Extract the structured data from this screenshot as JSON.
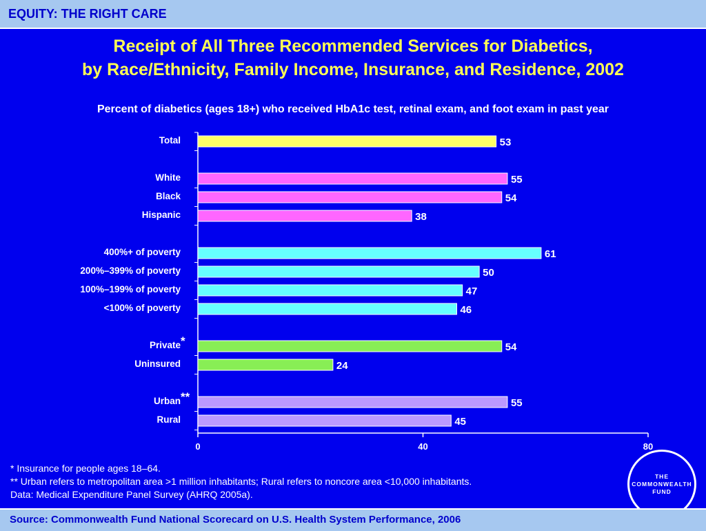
{
  "header": {
    "section": "EQUITY: THE RIGHT CARE"
  },
  "title": {
    "line1": "Receipt of All Three Recommended Services for Diabetics,",
    "line2": "by Race/Ethnicity, Family Income, Insurance, and Residence, 2002"
  },
  "subtitle": "Percent of diabetics (ages 18+) who received HbA1c test, retinal exam, and foot exam in past year",
  "chart_data": {
    "type": "bar",
    "orientation": "horizontal",
    "xlim": [
      0,
      80
    ],
    "xticks": [
      0,
      40,
      80
    ],
    "grid": false,
    "legend": "none",
    "groups": [
      {
        "color": "#ffff66",
        "items": [
          {
            "label": "Total",
            "value": 53,
            "marker": ""
          }
        ]
      },
      {
        "color": "#ff66ff",
        "items": [
          {
            "label": "White",
            "value": 55,
            "marker": ""
          },
          {
            "label": "Black",
            "value": 54,
            "marker": ""
          },
          {
            "label": "Hispanic",
            "value": 38,
            "marker": ""
          }
        ]
      },
      {
        "color": "#66ffff",
        "items": [
          {
            "label": "400%+ of poverty",
            "value": 61,
            "marker": ""
          },
          {
            "label": "200%–399% of poverty",
            "value": 50,
            "marker": ""
          },
          {
            "label": "100%–199% of poverty",
            "value": 47,
            "marker": ""
          },
          {
            "label": "<100% of poverty",
            "value": 46,
            "marker": ""
          }
        ]
      },
      {
        "color": "#88ee55",
        "items": [
          {
            "label": "Private",
            "value": 54,
            "marker": "*"
          },
          {
            "label": "Uninsured",
            "value": 24,
            "marker": ""
          }
        ]
      },
      {
        "color": "#bb99ff",
        "items": [
          {
            "label": "Urban",
            "value": 55,
            "marker": "**"
          },
          {
            "label": "Rural",
            "value": 45,
            "marker": ""
          }
        ]
      }
    ]
  },
  "footnotes": {
    "note1": "* Insurance for people ages 18–64.",
    "note2": "** Urban refers to metropolitan area >1 million inhabitants; Rural refers to noncore area <10,000 inhabitants.",
    "note3": "Data: Medical Expenditure Panel Survey (AHRQ 2005a)."
  },
  "logo": {
    "line1": "THE",
    "line2": "COMMONWEALTH",
    "line3": "FUND"
  },
  "footer": {
    "source": "Source: Commonwealth Fund National Scorecard on U.S. Health System Performance, 2006"
  }
}
